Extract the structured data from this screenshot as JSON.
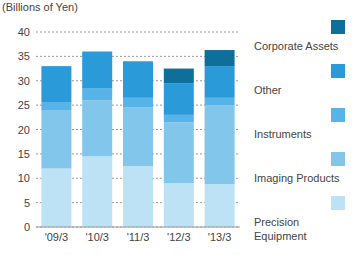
{
  "chart_data": {
    "type": "bar",
    "stacked": true,
    "grid": true,
    "legend": "right",
    "y_label": "(Billions of Yen)",
    "categories": [
      "'09/3",
      "'10/3",
      "'11/3",
      "'12/3",
      "'13/3"
    ],
    "series": [
      {
        "name": "Precision Equipment",
        "color": "#bde2f5",
        "values": [
          12,
          14.5,
          12.5,
          9,
          8.8
        ]
      },
      {
        "name": "Imaging Products",
        "color": "#82c6ec",
        "values": [
          12,
          11.5,
          12,
          12.5,
          16.2
        ]
      },
      {
        "name": "Instruments",
        "color": "#57b3e8",
        "values": [
          1.5,
          2.5,
          2,
          1.5,
          1.5
        ]
      },
      {
        "name": "Other",
        "color": "#2b9ad9",
        "values": [
          7.5,
          7.5,
          7.5,
          6.5,
          6.5
        ]
      },
      {
        "name": "Corporate Assets",
        "color": "#0f6f9b",
        "values": [
          0,
          0,
          0,
          3,
          3.3
        ]
      }
    ],
    "ylim": [
      0,
      40
    ],
    "yticks": [
      0,
      5,
      10,
      15,
      20,
      25,
      30,
      35,
      40
    ]
  }
}
